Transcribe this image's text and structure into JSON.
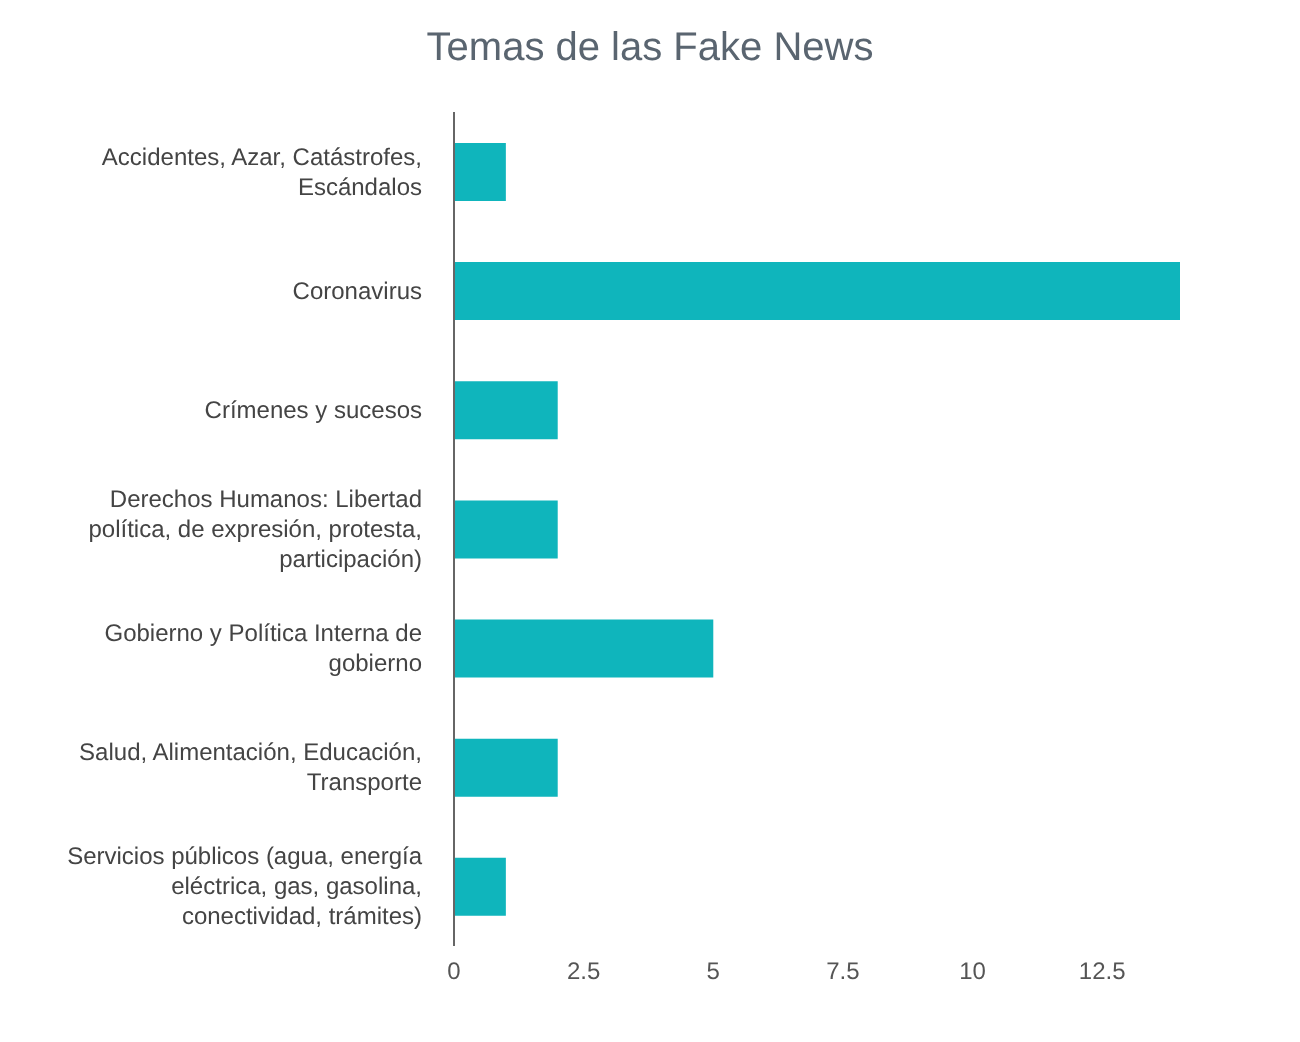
{
  "chart_data": {
    "type": "bar",
    "orientation": "horizontal",
    "title": "Temas de las Fake News",
    "categories": [
      "Accidentes, Azar, Catástrofes, Escándalos",
      "Coronavirus",
      "Crímenes y sucesos",
      "Derechos Humanos: Libertad política, de expresión, protesta, participación)",
      "Gobierno y Política Interna de gobierno",
      "Salud, Alimentación, Educación, Transporte",
      "Servicios públicos (agua, energía eléctrica, gas, gasolina, conectividad, trámites)"
    ],
    "values": [
      1,
      14,
      2,
      2,
      5,
      2,
      1
    ],
    "color": "#0fb5bc",
    "xlim": [
      0,
      14
    ],
    "xticks": [
      0,
      2.5,
      5,
      7.5,
      10,
      12.5
    ],
    "grid": false
  }
}
